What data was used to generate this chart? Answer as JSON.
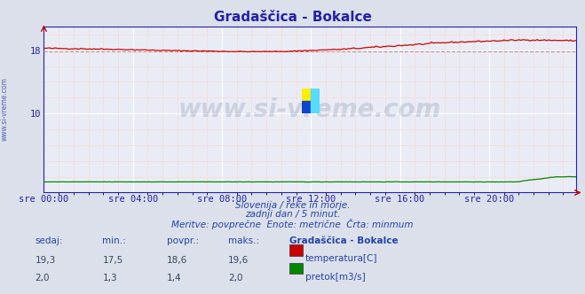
{
  "title": "Gradaščica - Bokalce",
  "bg_color": "#dce0ea",
  "plot_bg_color": "#eaecf5",
  "grid_color_major": "#ffffff",
  "grid_color_minor": "#f5d8d8",
  "temp_color": "#cc0000",
  "flow_color": "#008800",
  "min_line_color": "#cc8888",
  "xlim": [
    0,
    287
  ],
  "ylim": [
    0,
    21
  ],
  "xtick_labels": [
    "sre 00:00",
    "sre 04:00",
    "sre 08:00",
    "sre 12:00",
    "sre 16:00",
    "sre 20:00"
  ],
  "xtick_positions": [
    0,
    48,
    96,
    144,
    192,
    240
  ],
  "title_color": "#2222aa",
  "axis_color": "#2222aa",
  "text_color": "#2244aa",
  "subtitle1": "Slovenija / reke in morje.",
  "subtitle2": "zadnji dan / 5 minut.",
  "subtitle3": "Meritve: povprečne  Enote: metrične  Črta: minmum",
  "stats_headers": [
    "sedaj:",
    "min.:",
    "povpr.:",
    "maks.:",
    "Gradaščica - Bokalce"
  ],
  "temp_stats": [
    "19,3",
    "17,5",
    "18,6",
    "19,6"
  ],
  "flow_stats": [
    "2,0",
    "1,3",
    "1,4",
    "2,0"
  ],
  "temp_label": "temperatura[C]",
  "flow_label": "pretok[m3/s]",
  "min_value": 17.9,
  "watermark": "www.si-vreme.com",
  "watermark_color": "#1a3a6e",
  "watermark_alpha": 0.15,
  "left_label": "www.si-vreme.com"
}
